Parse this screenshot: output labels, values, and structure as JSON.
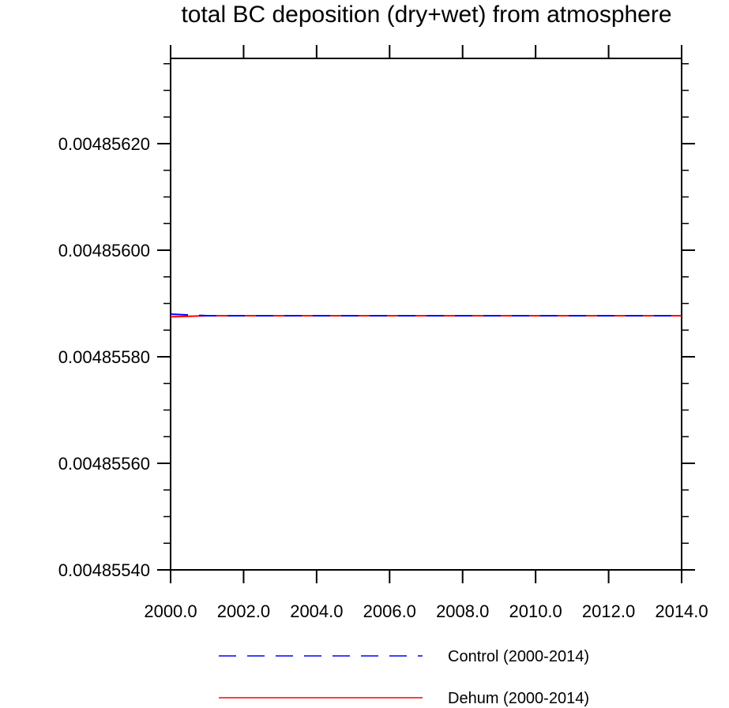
{
  "chart_data": {
    "type": "line",
    "title": "total BC deposition (dry+wet) from atmosphere",
    "xlabel": "",
    "ylabel": "",
    "xlim": [
      2000,
      2014
    ],
    "ylim": [
      0.0048554,
      0.00485636
    ],
    "x_ticks": [
      2000,
      2002,
      2004,
      2006,
      2008,
      2010,
      2012,
      2014
    ],
    "x_tick_labels": [
      "2000.0",
      "2002.0",
      "2004.0",
      "2006.0",
      "2008.0",
      "2010.0",
      "2012.0",
      "2014.0"
    ],
    "y_ticks": [
      0.0048554,
      0.0048556,
      0.0048558,
      0.004856,
      0.0048562
    ],
    "y_tick_labels": [
      "0.00485540",
      "0.00485560",
      "0.00485580",
      "0.00485600",
      "0.00485620"
    ],
    "grid": false,
    "legend_position": "bottom",
    "x": [
      2000,
      2001,
      2002,
      2003,
      2004,
      2005,
      2006,
      2007,
      2008,
      2009,
      2010,
      2011,
      2012,
      2013,
      2014
    ],
    "series": [
      {
        "name": "Control (2000-2014)",
        "color": "#0000ff",
        "style": "dashed",
        "values": [
          0.00485588,
          0.004855877,
          0.004855877,
          0.004855877,
          0.004855877,
          0.004855877,
          0.004855877,
          0.004855877,
          0.004855877,
          0.004855877,
          0.004855877,
          0.004855877,
          0.004855877,
          0.004855877,
          0.004855877
        ]
      },
      {
        "name": "Dehum (2000-2014)",
        "color": "#ff0000",
        "style": "solid",
        "values": [
          0.004855875,
          0.004855877,
          0.004855877,
          0.004855877,
          0.004855877,
          0.004855877,
          0.004855877,
          0.004855877,
          0.004855877,
          0.004855877,
          0.004855877,
          0.004855877,
          0.004855877,
          0.004855877,
          0.004855877
        ]
      }
    ]
  }
}
